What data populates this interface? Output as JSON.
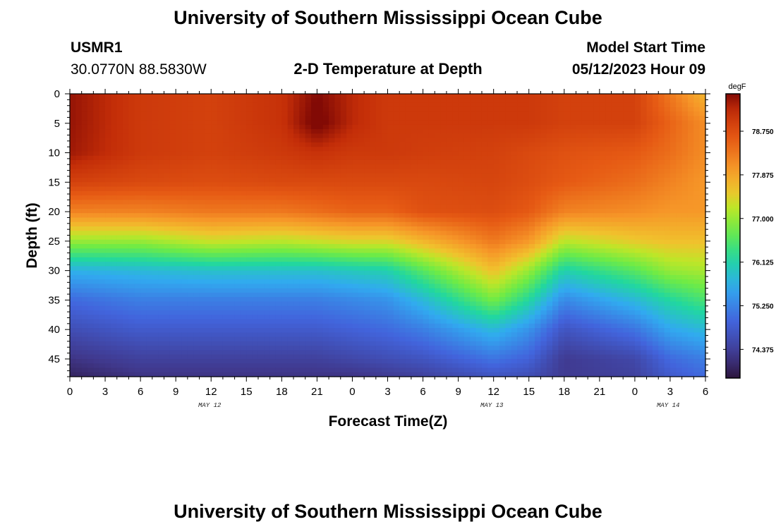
{
  "header": {
    "title": "University of Southern Mississippi Ocean Cube",
    "station": "USMR1",
    "coords": "30.0770N  88.5830W",
    "plot_title": "2-D Temperature at Depth",
    "model_label": "Model Start Time",
    "model_time": "05/12/2023 Hour 09"
  },
  "footer": {
    "title": "University of Southern Mississippi Ocean Cube"
  },
  "colors": {
    "background": "#ffffff"
  },
  "chart_data": {
    "type": "heatmap",
    "title": "2-D Temperature at Depth",
    "xlabel": "Forecast Time(Z)",
    "ylabel": "Depth (ft)",
    "x_range_hours": [
      0,
      54
    ],
    "y_range_ft": [
      0,
      48
    ],
    "x_ticks": [
      "0",
      "3",
      "6",
      "9",
      "12",
      "15",
      "18",
      "21",
      "0",
      "3",
      "6",
      "9",
      "12",
      "15",
      "18",
      "21",
      "0",
      "3",
      "6"
    ],
    "date_labels": [
      "MAY 12",
      "MAY 13",
      "MAY 14"
    ],
    "y_ticks": [
      "0",
      "5",
      "10",
      "15",
      "20",
      "25",
      "30",
      "35",
      "40",
      "45"
    ],
    "colorbar": {
      "units": "degF",
      "min": 73.8,
      "max": 79.5,
      "ticks": [
        "78.750",
        "77.875",
        "77.000",
        "76.125",
        "75.250",
        "74.375"
      ],
      "tick_values": [
        78.75,
        77.875,
        77.0,
        76.125,
        75.25,
        74.375
      ]
    },
    "profile_hours": [
      0,
      6,
      12,
      18,
      21,
      24,
      27,
      30,
      36,
      39,
      42,
      48,
      51,
      54
    ],
    "profile_depths_ft": [
      0,
      5,
      10,
      15,
      20,
      25,
      30,
      35,
      40,
      45,
      48
    ],
    "temperature_degF": [
      [
        79.4,
        79.4,
        79.35,
        78.9,
        78.2,
        77.0,
        75.7,
        75.0,
        74.6,
        74.2,
        74.0
      ],
      [
        79.0,
        79.0,
        79.0,
        78.8,
        78.2,
        77.0,
        75.8,
        75.2,
        74.8,
        74.4,
        74.2
      ],
      [
        78.9,
        78.9,
        78.9,
        78.75,
        78.3,
        77.3,
        75.9,
        75.2,
        74.8,
        74.4,
        74.2
      ],
      [
        79.1,
        79.1,
        79.0,
        78.8,
        78.3,
        77.2,
        75.9,
        75.2,
        74.8,
        74.4,
        74.2
      ],
      [
        79.5,
        79.6,
        79.1,
        78.8,
        78.4,
        77.3,
        75.9,
        75.2,
        74.8,
        74.4,
        74.2
      ],
      [
        79.2,
        79.2,
        79.0,
        78.8,
        78.5,
        77.4,
        76.0,
        75.3,
        74.9,
        74.5,
        74.2
      ],
      [
        79.0,
        79.0,
        79.0,
        78.8,
        78.5,
        77.4,
        76.1,
        75.4,
        75.0,
        74.6,
        74.3
      ],
      [
        79.0,
        79.0,
        78.95,
        78.8,
        78.7,
        77.7,
        76.6,
        75.8,
        75.2,
        74.7,
        74.4
      ],
      [
        79.0,
        79.0,
        78.9,
        78.85,
        78.75,
        78.3,
        77.6,
        76.8,
        75.8,
        75.1,
        74.7
      ],
      [
        79.0,
        79.0,
        78.8,
        78.75,
        78.6,
        78.0,
        77.0,
        76.2,
        75.4,
        74.9,
        74.6
      ],
      [
        78.9,
        78.9,
        78.7,
        78.6,
        78.2,
        77.2,
        76.1,
        75.3,
        74.7,
        74.3,
        74.3
      ],
      [
        78.9,
        78.9,
        78.6,
        78.4,
        78.1,
        77.5,
        76.6,
        75.8,
        75.1,
        74.5,
        74.4
      ],
      [
        78.3,
        78.5,
        78.4,
        78.2,
        78.0,
        77.6,
        77.0,
        76.2,
        75.6,
        75.0,
        74.8
      ],
      [
        77.7,
        78.1,
        78.1,
        78.0,
        78.0,
        77.6,
        77.1,
        76.5,
        75.8,
        75.2,
        75.0
      ]
    ]
  }
}
